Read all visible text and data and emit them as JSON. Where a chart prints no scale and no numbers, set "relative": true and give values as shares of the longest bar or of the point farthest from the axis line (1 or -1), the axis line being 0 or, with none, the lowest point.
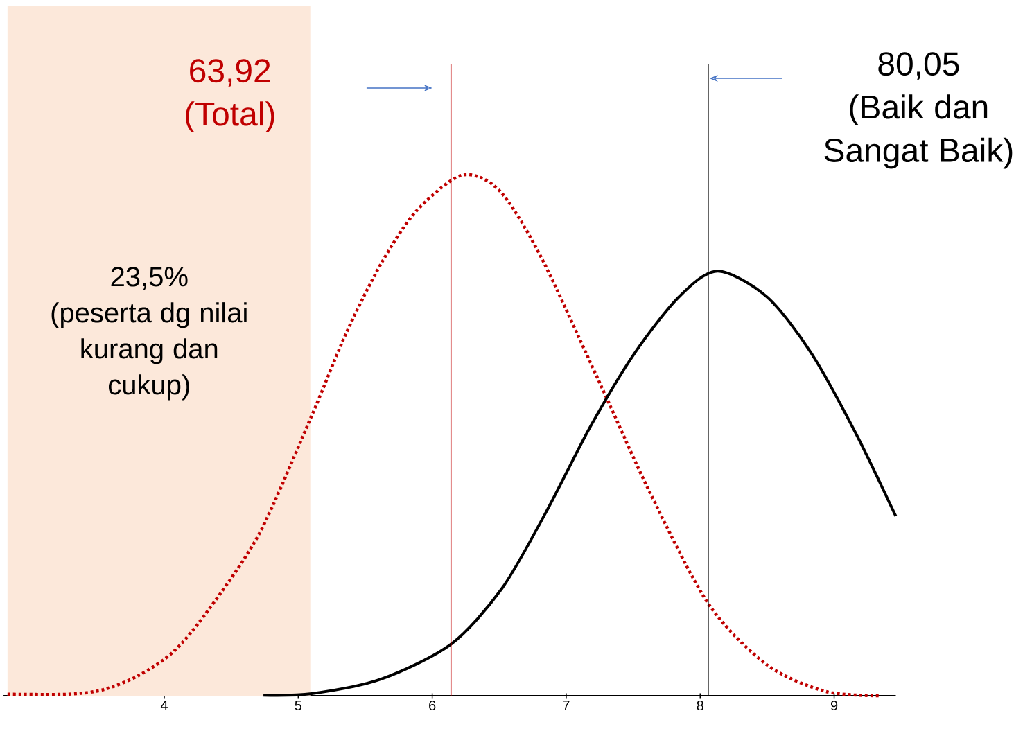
{
  "chart_data": {
    "type": "line",
    "relative": true,
    "xlim": [
      2.8,
      9.46
    ],
    "xticks": [
      4,
      5,
      6,
      7,
      8,
      9
    ],
    "tick_labels": "x",
    "series": [
      {
        "color": "#c00000",
        "line_style": "dotted",
        "x": [
          2.83,
          3.29,
          3.55,
          3.81,
          4.07,
          4.33,
          4.71,
          5.1,
          5.36,
          5.62,
          5.88,
          6.22,
          6.5,
          6.81,
          7.27,
          7.62,
          8.06,
          8.5,
          8.94,
          9.35
        ],
        "values": [
          0.003,
          0.003,
          0.012,
          0.039,
          0.085,
          0.165,
          0.312,
          0.538,
          0.698,
          0.831,
          0.931,
          1,
          0.971,
          0.844,
          0.59,
          0.393,
          0.177,
          0.059,
          0.008,
          0
        ]
      },
      {
        "color": "#000000",
        "line_style": "solid",
        "x": [
          4.74,
          5.1,
          5.62,
          6.14,
          6.52,
          6.85,
          7.18,
          7.51,
          7.84,
          8.13,
          8.5,
          8.83,
          9.16,
          9.46
        ],
        "values": [
          0.001,
          0.004,
          0.032,
          0.099,
          0.206,
          0.353,
          0.517,
          0.658,
          0.766,
          0.816,
          0.766,
          0.658,
          0.505,
          0.345
        ]
      }
    ],
    "ref_lines": [
      {
        "axis": "x",
        "value": 6.14,
        "label": "63,92 (Total)",
        "color": "#c00000"
      },
      {
        "axis": "x",
        "value": 8.06,
        "label": "80,05 (Baik dan Sangat Baik)",
        "color": "#000000"
      }
    ],
    "bands": [
      {
        "axis": "x",
        "from": 2.83,
        "to": 5.09,
        "label": "23,5% (peserta dg nilai kurang dan cukup)",
        "color": "#fce8da"
      }
    ]
  }
}
